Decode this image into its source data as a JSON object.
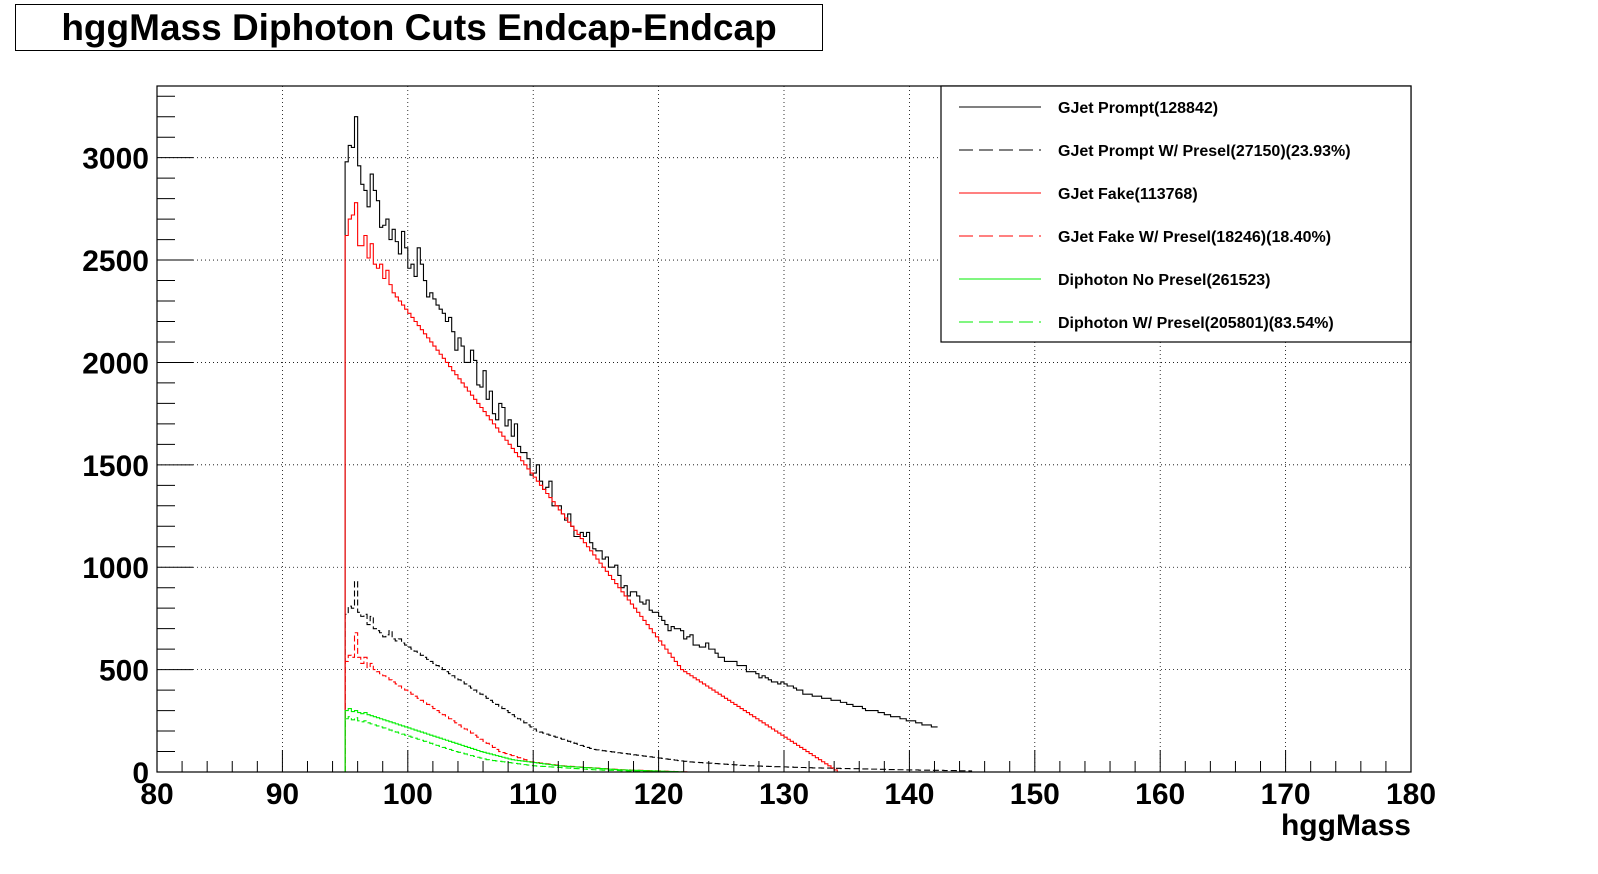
{
  "chart_data": {
    "type": "histogram",
    "title": "hggMass Diphoton Cuts Endcap-Endcap",
    "xlabel": "hggMass",
    "ylabel": "",
    "xlim": [
      80,
      180
    ],
    "ylim": [
      0,
      3350
    ],
    "x_ticks": [
      80,
      90,
      100,
      110,
      120,
      130,
      140,
      150,
      160,
      170,
      180
    ],
    "y_ticks": [
      0,
      500,
      1000,
      1500,
      2000,
      2500,
      3000
    ],
    "x_tick_labels": [
      "80",
      "90",
      "100",
      "110",
      "120",
      "130",
      "140",
      "150",
      "160",
      "170",
      "180"
    ],
    "y_tick_labels": [
      "0",
      "500",
      "1000",
      "1500",
      "2000",
      "2500",
      "3000"
    ],
    "grid": true,
    "legend_position": "top-right",
    "bin_start": 95,
    "bin_width": 0.25,
    "series": [
      {
        "name": "GJet Prompt(128842)",
        "color": "#000000",
        "style": "solid",
        "values": [
          2980,
          3060,
          3050,
          3200,
          2960,
          2870,
          2840,
          2760,
          2920,
          2840,
          2790,
          2660,
          2670,
          2700,
          2600,
          2650,
          2590,
          2530,
          2640,
          2560,
          2460,
          2480,
          2420,
          2560,
          2480,
          2400,
          2320,
          2340,
          2310,
          2280,
          2260,
          2240,
          2200,
          2220,
          2150,
          2060,
          2120,
          2080,
          2000,
          2000,
          2060,
          2010,
          1890,
          1880,
          1960,
          1820,
          1860,
          1750,
          1720,
          1800,
          1780,
          1690,
          1720,
          1640,
          1700,
          1590,
          1560,
          1560,
          1530,
          1450,
          1460,
          1500,
          1420,
          1380,
          1390,
          1420,
          1300,
          1300,
          1300,
          1260,
          1230,
          1260,
          1200,
          1150,
          1150,
          1170,
          1150,
          1170,
          1120,
          1090,
          1080,
          1080,
          1040,
          1050,
          1000,
          1000,
          1010,
          960,
          900,
          910,
          860,
          880,
          880,
          860,
          830,
          820,
          840,
          790,
          780,
          780,
          760,
          740,
          720,
          690,
          710,
          700,
          700,
          690,
          650,
          660,
          670,
          620,
          620,
          610,
          610,
          630,
          600,
          600,
          580,
          560,
          560,
          540,
          540,
          540,
          540,
          520,
          520,
          520,
          490,
          490,
          490,
          480,
          460,
          470,
          460,
          450,
          440,
          440,
          430,
          440,
          430,
          420,
          420,
          410,
          400,
          400,
          380,
          380,
          380,
          370,
          370,
          370,
          360,
          360,
          360,
          350,
          350,
          350,
          340,
          340,
          330,
          330,
          320,
          320,
          320,
          310,
          300,
          300,
          300,
          300,
          290,
          290,
          280,
          280,
          270,
          270,
          270,
          260,
          260,
          250,
          250,
          250,
          240,
          240,
          230,
          230,
          230,
          220,
          220
        ]
      },
      {
        "name": "GJet Prompt W/ Presel(27150)(23.93%)",
        "color": "#000000",
        "style": "dashed",
        "values": [
          770,
          810,
          800,
          930,
          780,
          760,
          770,
          720,
          760,
          700,
          690,
          680,
          660,
          670,
          690,
          650,
          640,
          650,
          630,
          620,
          610,
          600,
          590,
          580,
          570,
          560,
          550,
          540,
          530,
          520,
          510,
          500,
          490,
          480,
          470,
          460,
          450,
          440,
          430,
          420,
          410,
          400,
          390,
          380,
          370,
          360,
          350,
          340,
          330,
          320,
          310,
          300,
          290,
          280,
          270,
          260,
          250,
          240,
          230,
          220,
          210,
          200,
          195,
          190,
          185,
          180,
          175,
          170,
          165,
          160,
          155,
          150,
          145,
          140,
          135,
          130,
          125,
          120,
          115,
          110,
          108,
          106,
          104,
          102,
          100,
          98,
          96,
          94,
          92,
          90,
          88,
          86,
          84,
          82,
          80,
          78,
          76,
          74,
          72,
          70,
          68,
          66,
          64,
          62,
          60,
          58,
          56,
          54,
          52,
          50,
          49,
          48,
          47,
          46,
          45,
          44,
          43,
          42,
          41,
          40,
          39,
          38,
          37,
          36,
          35,
          34,
          33,
          32,
          31,
          30,
          30,
          29,
          29,
          28,
          28,
          27,
          27,
          26,
          26,
          25,
          25,
          24,
          24,
          23,
          23,
          22,
          22,
          21,
          21,
          20,
          20,
          20,
          19,
          19,
          19,
          18,
          18,
          18,
          17,
          17,
          17,
          16,
          16,
          16,
          15,
          15,
          15,
          14,
          14,
          14,
          13,
          13,
          13,
          12,
          12,
          12,
          11,
          11,
          11,
          10,
          10,
          10,
          10,
          9,
          9,
          9,
          9,
          8,
          8,
          8,
          8,
          7,
          7,
          7,
          7,
          6,
          6,
          6,
          6,
          5
        ]
      },
      {
        "name": "GJet Fake(113768)",
        "color": "#ff0000",
        "style": "solid",
        "values": [
          2620,
          2700,
          2720,
          2780,
          2570,
          2570,
          2620,
          2510,
          2580,
          2480,
          2460,
          2480,
          2410,
          2450,
          2380,
          2340,
          2320,
          2300,
          2280,
          2260,
          2240,
          2220,
          2200,
          2180,
          2160,
          2140,
          2120,
          2100,
          2080,
          2060,
          2040,
          2020,
          2000,
          1980,
          1960,
          1940,
          1920,
          1900,
          1880,
          1860,
          1840,
          1820,
          1800,
          1780,
          1760,
          1740,
          1720,
          1700,
          1680,
          1660,
          1640,
          1620,
          1600,
          1580,
          1560,
          1540,
          1520,
          1500,
          1480,
          1460,
          1440,
          1420,
          1400,
          1380,
          1360,
          1340,
          1320,
          1300,
          1280,
          1260,
          1240,
          1220,
          1200,
          1180,
          1160,
          1140,
          1120,
          1100,
          1080,
          1060,
          1040,
          1020,
          1000,
          980,
          960,
          940,
          920,
          900,
          880,
          860,
          840,
          820,
          800,
          780,
          760,
          740,
          720,
          700,
          680,
          660,
          640,
          620,
          600,
          580,
          560,
          540,
          520,
          500,
          490,
          480,
          470,
          460,
          450,
          440,
          430,
          420,
          410,
          400,
          390,
          380,
          370,
          360,
          350,
          340,
          330,
          320,
          310,
          300,
          290,
          280,
          270,
          260,
          250,
          240,
          230,
          220,
          210,
          200,
          190,
          180,
          170,
          160,
          150,
          140,
          130,
          120,
          110,
          100,
          90,
          80,
          70,
          60,
          50,
          40,
          30,
          20,
          10,
          0,
          0,
          0,
          0,
          0,
          0,
          0,
          0,
          0,
          0,
          0,
          0,
          0,
          0,
          0,
          0,
          0,
          0,
          0,
          0,
          0,
          0,
          0,
          0,
          0,
          0,
          0,
          0,
          0,
          0,
          0,
          0,
          0,
          0,
          0,
          0,
          0,
          0,
          0,
          0,
          0,
          0,
          0,
          0,
          0,
          0,
          0
        ]
      },
      {
        "name": "GJet Fake W/ Presel(18246)(18.40%)",
        "color": "#ff0000",
        "style": "dashed",
        "values": [
          540,
          570,
          560,
          680,
          560,
          530,
          560,
          510,
          530,
          500,
          490,
          480,
          470,
          460,
          450,
          440,
          430,
          420,
          410,
          400,
          390,
          380,
          370,
          360,
          350,
          340,
          330,
          320,
          310,
          300,
          290,
          280,
          270,
          260,
          250,
          240,
          230,
          220,
          210,
          200,
          190,
          180,
          170,
          160,
          150,
          140,
          130,
          120,
          110,
          100,
          95,
          90,
          85,
          80,
          75,
          70,
          65,
          60,
          55,
          50,
          48,
          46,
          44,
          42,
          40,
          38,
          36,
          34,
          32,
          30,
          29,
          28,
          27,
          26,
          25,
          24,
          23,
          22,
          21,
          20,
          19,
          18,
          17,
          16,
          15,
          14,
          13,
          12,
          11,
          10,
          10,
          9,
          9,
          8,
          8,
          7,
          7,
          6,
          6,
          5,
          5,
          4,
          4,
          3,
          3,
          2,
          2,
          1,
          1,
          0,
          0,
          0,
          0,
          0,
          0,
          0,
          0,
          0,
          0,
          0,
          0,
          0,
          0,
          0,
          0,
          0,
          0,
          0,
          0,
          0,
          0,
          0,
          0,
          0,
          0,
          0,
          0,
          0,
          0,
          0,
          0,
          0,
          0,
          0,
          0,
          0,
          0,
          0,
          0,
          0,
          0,
          0,
          0,
          0,
          0,
          0,
          0,
          0,
          0,
          0,
          0,
          0,
          0,
          0,
          0,
          0,
          0,
          0,
          0,
          0,
          0,
          0,
          0,
          0,
          0,
          0,
          0,
          0,
          0,
          0,
          0,
          0,
          0,
          0,
          0,
          0,
          0,
          0,
          0,
          0,
          0,
          0,
          0,
          0,
          0,
          0,
          0,
          0,
          0,
          0
        ]
      },
      {
        "name": "Diphoton No Presel(261523)",
        "color": "#00ee00",
        "style": "solid",
        "values": [
          300,
          310,
          295,
          300,
          290,
          285,
          290,
          280,
          275,
          270,
          265,
          260,
          255,
          250,
          245,
          240,
          235,
          230,
          225,
          220,
          215,
          210,
          205,
          200,
          195,
          190,
          185,
          180,
          175,
          170,
          165,
          160,
          155,
          150,
          145,
          140,
          135,
          130,
          125,
          120,
          115,
          110,
          105,
          100,
          96,
          92,
          88,
          84,
          80,
          76,
          72,
          68,
          64,
          60,
          58,
          56,
          54,
          52,
          50,
          48,
          46,
          44,
          42,
          40,
          38,
          36,
          34,
          32,
          30,
          29,
          28,
          27,
          26,
          25,
          24,
          23,
          22,
          21,
          20,
          19,
          18,
          17,
          16,
          15,
          14,
          13,
          12,
          11,
          10,
          10,
          9,
          9,
          8,
          8,
          7,
          7,
          6,
          6,
          5,
          5,
          4,
          4,
          3,
          3,
          2,
          2,
          1,
          1,
          0,
          0,
          0,
          0,
          0,
          0,
          0,
          0,
          0,
          0,
          0,
          0,
          0,
          0,
          0,
          0,
          0,
          0,
          0,
          0,
          0,
          0,
          0,
          0,
          0,
          0,
          0,
          0,
          0,
          0,
          0,
          0,
          0,
          0,
          0,
          0,
          0,
          0,
          0,
          0,
          0,
          0,
          0,
          0,
          0,
          0,
          0,
          0,
          0,
          0,
          0,
          0,
          0,
          0,
          0,
          0,
          0,
          0,
          0,
          0,
          0,
          0,
          0,
          0,
          0,
          0,
          0,
          0,
          0,
          0,
          0,
          0,
          0,
          0,
          0,
          0,
          0,
          0,
          0,
          0,
          0,
          0,
          0,
          0,
          0,
          0,
          0,
          0,
          0,
          0,
          0,
          0
        ]
      },
      {
        "name": "Diphoton W/ Presel(205801)(83.54%)",
        "color": "#00ee00",
        "style": "dashed",
        "values": [
          260,
          270,
          255,
          265,
          250,
          245,
          250,
          240,
          235,
          230,
          225,
          220,
          215,
          210,
          205,
          200,
          195,
          190,
          185,
          180,
          175,
          170,
          165,
          160,
          155,
          150,
          145,
          140,
          135,
          130,
          125,
          120,
          115,
          110,
          105,
          100,
          96,
          92,
          88,
          84,
          80,
          76,
          72,
          68,
          64,
          60,
          58,
          56,
          54,
          52,
          50,
          48,
          46,
          44,
          42,
          40,
          38,
          36,
          34,
          32,
          30,
          29,
          28,
          27,
          26,
          25,
          24,
          23,
          22,
          21,
          20,
          19,
          18,
          17,
          16,
          15,
          14,
          13,
          12,
          11,
          10,
          10,
          9,
          9,
          8,
          8,
          7,
          7,
          6,
          6,
          5,
          5,
          4,
          4,
          3,
          3,
          2,
          2,
          1,
          1,
          0,
          0,
          0,
          0,
          0,
          0,
          0,
          0,
          0,
          0,
          0,
          0,
          0,
          0,
          0,
          0,
          0,
          0,
          0,
          0,
          0,
          0,
          0,
          0,
          0,
          0,
          0,
          0,
          0,
          0,
          0,
          0,
          0,
          0,
          0,
          0,
          0,
          0,
          0,
          0,
          0,
          0,
          0,
          0,
          0,
          0,
          0,
          0,
          0,
          0,
          0,
          0,
          0,
          0,
          0,
          0,
          0,
          0,
          0,
          0,
          0,
          0,
          0,
          0,
          0,
          0,
          0,
          0,
          0,
          0,
          0,
          0,
          0,
          0,
          0,
          0,
          0,
          0,
          0,
          0,
          0,
          0,
          0,
          0,
          0,
          0,
          0,
          0,
          0,
          0,
          0,
          0,
          0,
          0,
          0,
          0,
          0,
          0,
          0,
          0
        ]
      }
    ]
  }
}
